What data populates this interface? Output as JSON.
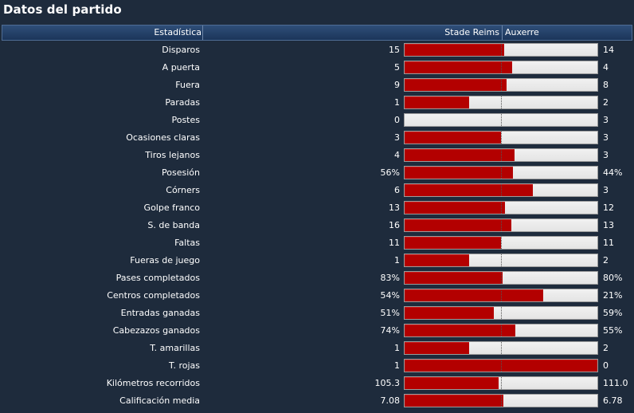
{
  "title": "Datos del partido",
  "header": {
    "stat_col": "Estadística",
    "home_team": "Stade Reims",
    "away_team": "Auxerre"
  },
  "colors": {
    "home_bar": "#b30000",
    "away_bar": "#e4e4e4",
    "background": "#1e2b3c",
    "header_bg": "#234268"
  },
  "stats": [
    {
      "label": "Disparos",
      "home": "15",
      "away": "14",
      "home_share": 0.517
    },
    {
      "label": "A puerta",
      "home": "5",
      "away": "4",
      "home_share": 0.556
    },
    {
      "label": "Fuera",
      "home": "9",
      "away": "8",
      "home_share": 0.529
    },
    {
      "label": "Paradas",
      "home": "1",
      "away": "2",
      "home_share": 0.333
    },
    {
      "label": "Postes",
      "home": "0",
      "away": "3",
      "home_share": 0.0
    },
    {
      "label": "Ocasiones claras",
      "home": "3",
      "away": "3",
      "home_share": 0.5
    },
    {
      "label": "Tiros lejanos",
      "home": "4",
      "away": "3",
      "home_share": 0.571
    },
    {
      "label": "Posesión",
      "home": "56%",
      "away": "44%",
      "home_share": 0.56
    },
    {
      "label": "Córners",
      "home": "6",
      "away": "3",
      "home_share": 0.667
    },
    {
      "label": "Golpe franco",
      "home": "13",
      "away": "12",
      "home_share": 0.52
    },
    {
      "label": "S. de banda",
      "home": "16",
      "away": "13",
      "home_share": 0.552
    },
    {
      "label": "Faltas",
      "home": "11",
      "away": "11",
      "home_share": 0.5
    },
    {
      "label": "Fueras de juego",
      "home": "1",
      "away": "2",
      "home_share": 0.333
    },
    {
      "label": "Pases completados",
      "home": "83%",
      "away": "80%",
      "home_share": 0.509
    },
    {
      "label": "Centros completados",
      "home": "54%",
      "away": "21%",
      "home_share": 0.72
    },
    {
      "label": "Entradas ganadas",
      "home": "51%",
      "away": "59%",
      "home_share": 0.464
    },
    {
      "label": "Cabezazos ganados",
      "home": "74%",
      "away": "55%",
      "home_share": 0.574
    },
    {
      "label": "T. amarillas",
      "home": "1",
      "away": "2",
      "home_share": 0.333
    },
    {
      "label": "T. rojas",
      "home": "1",
      "away": "0",
      "home_share": 1.0
    },
    {
      "label": "Kilómetros recorridos",
      "home": "105.3",
      "away": "111.0",
      "home_share": 0.487
    },
    {
      "label": "Calificación media",
      "home": "7.08",
      "away": "6.78",
      "home_share": 0.511
    }
  ]
}
